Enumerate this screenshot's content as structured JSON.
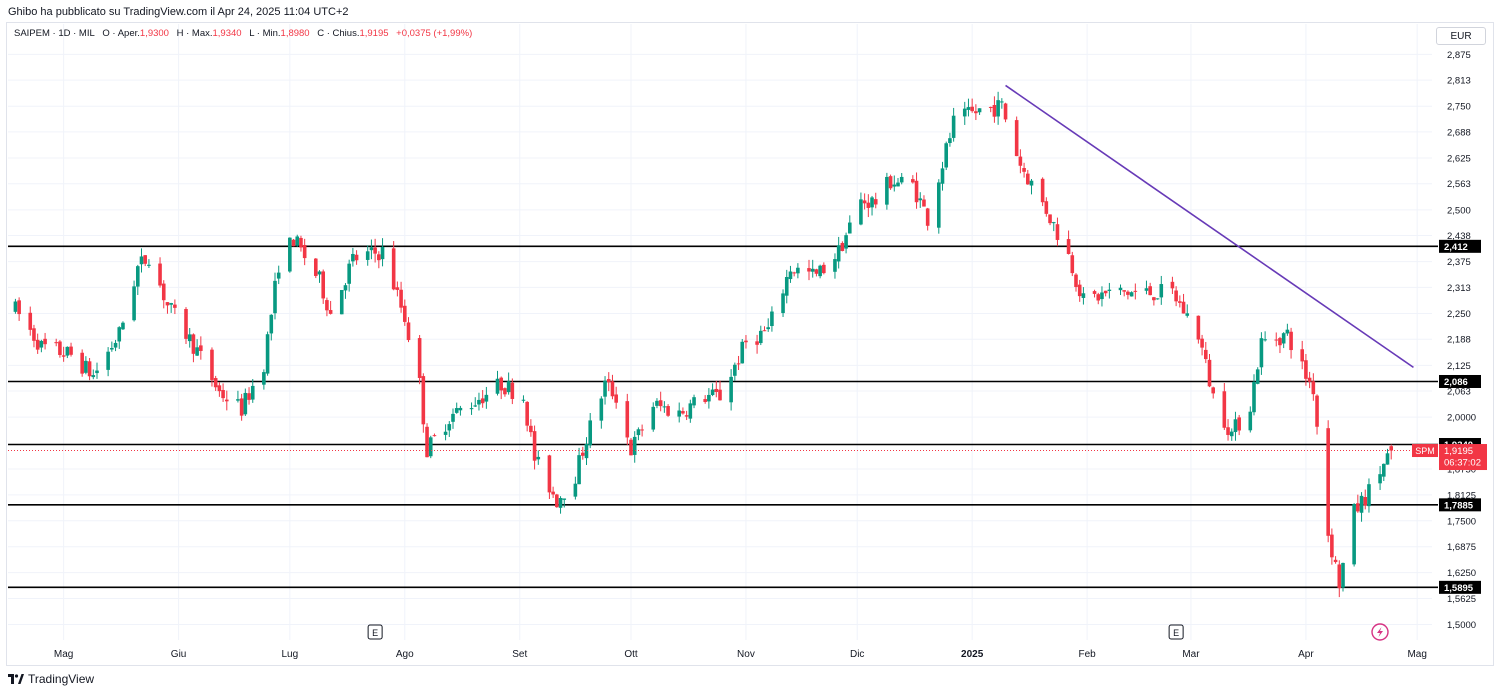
{
  "header": {
    "publisher": "Ghibo ha pubblicato su TradingView.com il Apr 24, 2025 11:04 UTC+2"
  },
  "legend": {
    "symbol": "SAIPEM · 1D · MIL",
    "open_label": "O · Aper.",
    "open": "1,9300",
    "high_label": "H · Max.",
    "high": "1,9340",
    "low_label": "L · Min.",
    "low": "1,8980",
    "close_label": "C · Chius.",
    "close": "1,9195",
    "change": "+0,0375 (+1,99%)"
  },
  "currency": "EUR",
  "footer": {
    "brand": "TradingView"
  },
  "colors": {
    "up": "#089981",
    "down": "#f23645",
    "trendline": "#673ab7",
    "level": "#000000",
    "grid": "#f0f3fa"
  },
  "chart_data": {
    "type": "candlestick",
    "symbol": "SAIPEM",
    "interval": "1D",
    "exchange": "MIL",
    "currency": "EUR",
    "ylim": [
      1.4625,
      2.9
    ],
    "y_ticks": [
      "2,875",
      "2,813",
      "2,750",
      "2,688",
      "2,625",
      "2,563",
      "2,500",
      "2,438",
      "2,375",
      "2,313",
      "2,250",
      "2,188",
      "2,125",
      "2,063",
      "2,0000",
      "1,8750",
      "1,8125",
      "1,7500",
      "1,6875",
      "1,6250",
      "1,5625",
      "1,5000"
    ],
    "x_ticks": [
      "Mag",
      "Giu",
      "Lug",
      "Ago",
      "Set",
      "Ott",
      "Nov",
      "Dic",
      "2025",
      "Feb",
      "Mar",
      "Apr",
      "Mag"
    ],
    "horizontal_levels": [
      {
        "value": 2.412,
        "label": "2,412"
      },
      {
        "value": 2.086,
        "label": "2,086"
      },
      {
        "value": 1.934,
        "label": "1,9340"
      },
      {
        "value": 1.7885,
        "label": "1,7885"
      },
      {
        "value": 1.5895,
        "label": "1,5895"
      }
    ],
    "trendline": {
      "start": {
        "date": "2025-01-10",
        "value": 2.8
      },
      "end": {
        "date": "2025-04-30",
        "value": 2.12
      }
    },
    "last_price": {
      "value": 1.9195,
      "label": "1,9195",
      "tag": "SPM",
      "countdown": "06:37:02"
    },
    "earnings_markers": [
      {
        "date": "2024-07-24",
        "label": "E"
      },
      {
        "date": "2025-02-25",
        "label": "E"
      }
    ],
    "anchors": [
      [
        "2024-04-18",
        2.26
      ],
      [
        "2024-04-25",
        2.17
      ],
      [
        "2024-05-03",
        2.15
      ],
      [
        "2024-05-09",
        2.1
      ],
      [
        "2024-05-16",
        2.2
      ],
      [
        "2024-05-21",
        2.36
      ],
      [
        "2024-05-24",
        2.39
      ],
      [
        "2024-05-29",
        2.27
      ],
      [
        "2024-06-06",
        2.16
      ],
      [
        "2024-06-12",
        2.06
      ],
      [
        "2024-06-18",
        2.02
      ],
      [
        "2024-06-24",
        2.13
      ],
      [
        "2024-06-28",
        2.37
      ],
      [
        "2024-07-02",
        2.43
      ],
      [
        "2024-07-09",
        2.33
      ],
      [
        "2024-07-12",
        2.25
      ],
      [
        "2024-07-18",
        2.38
      ],
      [
        "2024-07-26",
        2.4
      ],
      [
        "2024-08-01",
        2.24
      ],
      [
        "2024-08-05",
        2.08
      ],
      [
        "2024-08-07",
        1.92
      ],
      [
        "2024-08-13",
        2.0
      ],
      [
        "2024-08-20",
        2.04
      ],
      [
        "2024-08-27",
        2.08
      ],
      [
        "2024-09-02",
        2.05
      ],
      [
        "2024-09-05",
        1.9
      ],
      [
        "2024-09-11",
        1.8
      ],
      [
        "2024-09-16",
        1.86
      ],
      [
        "2024-09-19",
        1.95
      ],
      [
        "2024-09-24",
        2.08
      ],
      [
        "2024-09-27",
        2.05
      ],
      [
        "2024-10-01",
        1.92
      ],
      [
        "2024-10-07",
        2.03
      ],
      [
        "2024-10-14",
        2.01
      ],
      [
        "2024-10-21",
        2.05
      ],
      [
        "2024-10-25",
        2.05
      ],
      [
        "2024-11-01",
        2.18
      ],
      [
        "2024-11-07",
        2.21
      ],
      [
        "2024-11-13",
        2.36
      ],
      [
        "2024-11-20",
        2.34
      ],
      [
        "2024-11-26",
        2.4
      ],
      [
        "2024-12-02",
        2.52
      ],
      [
        "2024-12-06",
        2.52
      ],
      [
        "2024-12-10",
        2.57
      ],
      [
        "2024-12-16",
        2.56
      ],
      [
        "2024-12-20",
        2.48
      ],
      [
        "2024-12-27",
        2.71
      ],
      [
        "2025-01-03",
        2.74
      ],
      [
        "2025-01-09",
        2.75
      ],
      [
        "2025-01-14",
        2.61
      ],
      [
        "2025-01-21",
        2.5
      ],
      [
        "2025-01-27",
        2.39
      ],
      [
        "2025-01-31",
        2.28
      ],
      [
        "2025-02-07",
        2.3
      ],
      [
        "2025-02-14",
        2.3
      ],
      [
        "2025-02-19",
        2.3
      ],
      [
        "2025-02-24",
        2.3
      ],
      [
        "2025-03-03",
        2.2
      ],
      [
        "2025-03-07",
        2.05
      ],
      [
        "2025-03-12",
        1.96
      ],
      [
        "2025-03-17",
        2.03
      ],
      [
        "2025-03-20",
        2.18
      ],
      [
        "2025-03-27",
        2.2
      ],
      [
        "2025-04-01",
        2.1
      ],
      [
        "2025-04-03",
        2.07
      ],
      [
        "2025-04-07",
        1.72
      ],
      [
        "2025-04-10",
        1.6
      ],
      [
        "2025-04-14",
        1.77
      ],
      [
        "2025-04-18",
        1.82
      ],
      [
        "2025-04-24",
        1.9195
      ]
    ]
  }
}
